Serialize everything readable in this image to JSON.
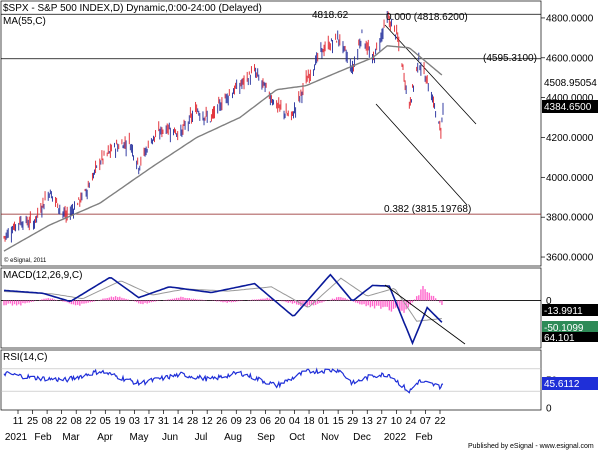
{
  "header": {
    "title": "$SPX - S&P 500 INDEX,D) Dynamic,0:00-24:00 (Delayed)",
    "ma_label": "MA(55,C)"
  },
  "annotations": {
    "peak_value": "4818.62",
    "fib_0_label": "0.000 (4818.6200)",
    "hline_label": "(4595.3100)",
    "fib_382_label": "0.382 (3815.19768)",
    "copyright": "© eSignal, 2011",
    "publisher": "Published by eSignal - www.esignal.com"
  },
  "value_badges": {
    "ma_value": "4508.95054",
    "last_price": "4384.6500",
    "macd_value": "-13.9911",
    "macd_signal": "-50.1099",
    "macd_hist_partial": "64.101",
    "rsi_value": "45.6112"
  },
  "x_axis": {
    "day_labels": [
      "11",
      "25",
      "08",
      "22",
      "08",
      "22",
      "05",
      "19",
      "03",
      "17",
      "31",
      "14",
      "28",
      "12",
      "26",
      "09",
      "23",
      "06",
      "20",
      "04",
      "18",
      "01",
      "15",
      "29",
      "13",
      "27",
      "10",
      "24",
      "07",
      "22"
    ],
    "month_labels": [
      "2021",
      "Feb",
      "Mar",
      "Apr",
      "May",
      "Jun",
      "Jul",
      "Aug",
      "Sep",
      "Oct",
      "Nov",
      "Dec",
      "2022",
      "Feb"
    ]
  },
  "colors": {
    "up_bar": "#1f2a9a",
    "down_bar": "#e0202a",
    "ma_line": "#808080",
    "macd_line": "#0a1a9a",
    "signal_line": "#999999",
    "hist_bar": "#ff66cc",
    "rsi_line": "#1f2fd8",
    "fib_line": "#8b1a1a",
    "badge_fill": "#000000",
    "badge_green": "#2e8b57"
  },
  "chart_data": [
    {
      "type": "line",
      "title": "$SPX - S&P 500 INDEX,D) Dynamic,0:00-24:00 (Delayed)",
      "series": [
        {
          "name": "$SPX",
          "x": [
            "2021-01-04",
            "2021-01-19",
            "2021-02-01",
            "2021-02-16",
            "2021-03-04",
            "2021-03-22",
            "2021-04-05",
            "2021-04-19",
            "2021-05-03",
            "2021-05-12",
            "2021-05-24",
            "2021-06-07",
            "2021-06-21",
            "2021-07-06",
            "2021-07-19",
            "2021-08-02",
            "2021-08-16",
            "2021-08-30",
            "2021-09-20",
            "2021-10-04",
            "2021-10-18",
            "2021-11-01",
            "2021-11-18",
            "2021-12-01",
            "2021-12-10",
            "2021-12-20",
            "2022-01-03",
            "2022-01-12",
            "2022-01-24",
            "2022-02-02",
            "2022-02-14",
            "2022-02-23",
            "2022-02-25"
          ],
          "values": [
            3700,
            3780,
            3770,
            3930,
            3800,
            3920,
            4080,
            4150,
            4180,
            4060,
            4190,
            4250,
            4220,
            4340,
            4290,
            4400,
            4460,
            4530,
            4360,
            4300,
            4480,
            4630,
            4700,
            4540,
            4720,
            4580,
            4800,
            4720,
            4360,
            4590,
            4420,
            4220,
            4380
          ]
        },
        {
          "name": "MA(55,C)",
          "x": [
            "2021-01-04",
            "2021-02-16",
            "2021-04-05",
            "2021-05-24",
            "2021-07-06",
            "2021-08-16",
            "2021-09-20",
            "2021-10-18",
            "2021-11-18",
            "2021-12-20",
            "2022-01-03",
            "2022-01-24",
            "2022-02-25"
          ],
          "values": [
            3630,
            3760,
            3870,
            4050,
            4200,
            4300,
            4440,
            4460,
            4530,
            4600,
            4660,
            4650,
            4509
          ]
        }
      ],
      "annotations": [
        "4818.62",
        "0.000 (4818.6200)",
        "(4595.3100)",
        "0.382 (3815.19768)"
      ],
      "y_tick_labels": [
        "4800.0000",
        "4600.0000",
        "4400.0000",
        "4200.0000",
        "4000.0000",
        "3800.0000",
        "3600.0000"
      ],
      "ylim": [
        3560,
        4880
      ],
      "grid": false
    },
    {
      "type": "line",
      "title": "MACD(12,26,9,C)",
      "series": [
        {
          "name": "MACD",
          "x": [
            "2021-01-04",
            "2021-02-10",
            "2021-03-08",
            "2021-04-15",
            "2021-05-12",
            "2021-06-10",
            "2021-07-20",
            "2021-08-30",
            "2021-10-06",
            "2021-11-10",
            "2021-12-01",
            "2021-12-20",
            "2022-01-05",
            "2022-01-27",
            "2022-02-10",
            "2022-02-25"
          ],
          "values": [
            28,
            20,
            -3,
            65,
            8,
            38,
            22,
            47,
            -45,
            72,
            -2,
            42,
            40,
            -119,
            -20,
            -64
          ]
        },
        {
          "name": "Signal",
          "x": [
            "2021-01-04",
            "2021-02-20",
            "2021-03-20",
            "2021-04-25",
            "2021-05-25",
            "2021-06-25",
            "2021-08-05",
            "2021-09-15",
            "2021-10-20",
            "2021-11-20",
            "2021-12-15",
            "2022-01-10",
            "2022-01-31",
            "2022-02-25"
          ],
          "values": [
            25,
            18,
            5,
            55,
            15,
            32,
            26,
            38,
            -20,
            62,
            12,
            34,
            -58,
            -50
          ]
        },
        {
          "name": "Histogram",
          "x": [
            "2021-01-20",
            "2021-02-15",
            "2021-03-15",
            "2021-04-20",
            "2021-05-15",
            "2021-06-20",
            "2021-08-05",
            "2021-09-10",
            "2021-10-20",
            "2021-11-20",
            "2021-12-10",
            "2022-01-20",
            "2022-02-07",
            "2022-02-25"
          ],
          "values": [
            -12,
            8,
            -15,
            14,
            -10,
            9,
            -6,
            7,
            -18,
            12,
            -14,
            -32,
            38,
            -14
          ]
        }
      ],
      "annotations": [
        "-13.9911",
        "-50.1099",
        "64.101"
      ],
      "y_tick_labels": [
        "0"
      ],
      "grid": false
    },
    {
      "type": "line",
      "title": "RSI(14,C)",
      "series": [
        {
          "name": "RSI(14,C)",
          "x": [
            "2021-01-04",
            "2021-02-01",
            "2021-03-04",
            "2021-04-05",
            "2021-05-12",
            "2021-06-21",
            "2021-07-19",
            "2021-08-16",
            "2021-09-20",
            "2021-10-18",
            "2021-11-18",
            "2021-12-01",
            "2021-12-20",
            "2022-01-05",
            "2022-01-24",
            "2022-02-02",
            "2022-02-23",
            "2022-02-25"
          ],
          "values": [
            62,
            54,
            50,
            66,
            44,
            60,
            51,
            63,
            40,
            65,
            68,
            44,
            58,
            60,
            29,
            48,
            38,
            46
          ]
        }
      ],
      "annotations": [
        "45.6112"
      ],
      "y_tick_labels": [
        "50",
        "0"
      ],
      "ylim": [
        0,
        100
      ],
      "grid": false
    }
  ]
}
